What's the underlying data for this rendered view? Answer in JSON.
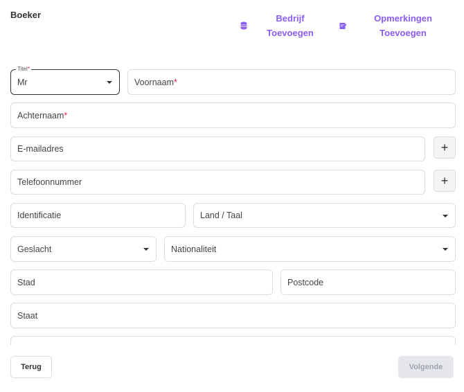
{
  "header": {
    "title": "Boeker",
    "actions": [
      {
        "icon": "database-icon",
        "line1": "Bedrijf",
        "line2": "Toevoegen"
      },
      {
        "icon": "edit-note-icon",
        "line1": "Opmerkingen",
        "line2": "Toevoegen"
      }
    ]
  },
  "form": {
    "titel": {
      "label": "Titel",
      "required": "*",
      "value": "Mr"
    },
    "voornaam": {
      "placeholder": "Voornaam",
      "required": "*"
    },
    "achternaam": {
      "placeholder": "Achternaam",
      "required": "*"
    },
    "email": {
      "placeholder": "E-mailadres"
    },
    "telefoon": {
      "placeholder": "Telefoonnummer"
    },
    "plus": "+",
    "identificatie": {
      "placeholder": "Identificatie"
    },
    "land_taal": {
      "placeholder": "Land / Taal"
    },
    "geslacht": {
      "placeholder": "Geslacht"
    },
    "nationaliteit": {
      "placeholder": "Nationaliteit"
    },
    "stad": {
      "placeholder": "Stad"
    },
    "postcode": {
      "placeholder": "Postcode"
    },
    "staat": {
      "placeholder": "Staat"
    }
  },
  "footer": {
    "back": "Terug",
    "next": "Volgende"
  },
  "colors": {
    "accent": "#8b5cf6",
    "required": "#e11d48",
    "disabled_bg": "#e5e7eb"
  }
}
